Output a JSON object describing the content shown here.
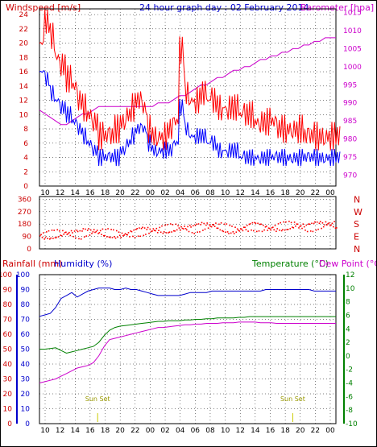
{
  "colors": {
    "wind": "#ff0000",
    "gust": "#ff0000",
    "avg": "#0000ff",
    "baro": "#cc00cc",
    "dir": "#ff0000",
    "temp": "#008000",
    "dew": "#cc00cc",
    "hum": "#0000cc",
    "rain": "#cc0000",
    "sun": "#cccc00",
    "grid": "#000000"
  },
  "chart_data": [
    {
      "type": "line",
      "title": "24 hour graph day : 02 February 2014",
      "ylabel_left": "Windspeed [m/s]",
      "ylabel_right": "Barometer [hpa]",
      "x_ticks": [
        "10",
        "12",
        "14",
        "16",
        "18",
        "20",
        "22",
        "00",
        "02",
        "04",
        "06",
        "08",
        "10",
        "12",
        "14",
        "16",
        "18",
        "20",
        "22",
        "00"
      ],
      "y_left_ticks": [
        0,
        2,
        4,
        6,
        8,
        10,
        12,
        14,
        16,
        18,
        20,
        22,
        24
      ],
      "y_left_ticks_labels": [
        "0",
        "2",
        "4",
        "6",
        "8",
        "10",
        "12",
        "14",
        "16",
        "18",
        "20",
        "22",
        "24"
      ],
      "y_right_ticks": [
        970,
        975,
        980,
        985,
        990,
        995,
        1000,
        1005,
        1010,
        1015
      ],
      "ylim_left": [
        0,
        24.8
      ],
      "ylim_right": [
        967,
        1016
      ],
      "series": [
        {
          "key": "gust",
          "axis": "left",
          "values": [
            20,
            23,
            21,
            18,
            17,
            15,
            14,
            12,
            11,
            10,
            9,
            7,
            7,
            7,
            8,
            9,
            10,
            11,
            12,
            11,
            8,
            7,
            7,
            7,
            8,
            9,
            19,
            13,
            12,
            12,
            13,
            12,
            12,
            11,
            11,
            11,
            11,
            10,
            10,
            10,
            9,
            9,
            9,
            9,
            8,
            8,
            8,
            8,
            8,
            7,
            7,
            7,
            7,
            7,
            7,
            7
          ]
        },
        {
          "key": "avg",
          "axis": "left",
          "values": [
            16,
            15,
            13,
            12,
            11,
            10,
            9,
            8,
            7,
            6,
            5,
            4,
            4,
            4,
            4,
            5,
            6,
            7,
            8,
            8,
            6,
            5,
            5,
            5,
            5,
            6,
            11,
            8,
            7,
            7,
            7,
            6,
            6,
            5,
            5,
            5,
            5,
            4,
            4,
            4,
            4,
            4,
            4,
            4,
            4,
            4,
            4,
            4,
            4,
            4,
            4,
            4,
            4,
            4,
            4,
            4
          ]
        },
        {
          "key": "baro",
          "axis": "right",
          "values": [
            988,
            987,
            986,
            985,
            984,
            984,
            985,
            986,
            987,
            987,
            988,
            989,
            989,
            989,
            989,
            989,
            989,
            989,
            989,
            989,
            989,
            989,
            990,
            990,
            990,
            991,
            992,
            992,
            993,
            994,
            995,
            995,
            996,
            997,
            997,
            998,
            999,
            999,
            1000,
            1000,
            1001,
            1002,
            1002,
            1003,
            1003,
            1004,
            1004,
            1005,
            1005,
            1006,
            1006,
            1007,
            1007,
            1008,
            1008,
            1008
          ]
        }
      ]
    },
    {
      "type": "scatter",
      "ylabel_right_letters": [
        "N",
        "W",
        "S",
        "E",
        "N"
      ],
      "y_ticks": [
        360,
        270,
        180,
        90,
        0
      ],
      "ylim": [
        0,
        380
      ],
      "series": [
        {
          "key": "dir",
          "values": [
            95,
            100,
            105,
            110,
            115,
            110,
            105,
            100,
            115,
            120,
            125,
            120,
            115,
            110,
            105,
            100,
            105,
            110,
            120,
            125,
            130,
            135,
            140,
            145,
            150,
            155,
            150,
            145,
            140,
            150,
            160,
            165,
            170,
            160,
            150,
            140,
            135,
            140,
            150,
            160,
            155,
            150,
            145,
            150,
            160,
            165,
            170,
            175,
            160,
            150,
            155,
            165,
            170,
            180,
            175,
            170
          ]
        }
      ]
    },
    {
      "type": "line",
      "ylabel_left_rain": "Rainfall (mm)",
      "ylabel_left_hum": "Humidity (%)",
      "ylabel_right_temp": "Temperature (°C)",
      "ylabel_right_dew": "Dew Point (°C)",
      "rain_ticks": [
        0,
        10,
        20,
        30,
        40,
        50,
        60,
        70,
        80,
        90,
        100
      ],
      "hum_ticks": [
        0,
        10,
        20,
        30,
        40,
        50,
        60,
        70,
        80,
        90,
        100
      ],
      "temp_ticks": [
        -10,
        -8,
        -6,
        -4,
        -2,
        0,
        2,
        4,
        6,
        8,
        10,
        12
      ],
      "ylim_hum": [
        0,
        100
      ],
      "ylim_temp": [
        -10,
        12
      ],
      "annotations": [
        "Sun Set",
        "Sun Set"
      ],
      "series": [
        {
          "key": "hum",
          "axis": "hum",
          "values": [
            72,
            73,
            74,
            78,
            84,
            86,
            88,
            85,
            87,
            89,
            90,
            91,
            91,
            91,
            90,
            90,
            91,
            90,
            90,
            89,
            88,
            87,
            86,
            86,
            86,
            86,
            86,
            87,
            88,
            88,
            88,
            88,
            89,
            89,
            89,
            89,
            89,
            89,
            89,
            89,
            89,
            89,
            90,
            90,
            90,
            90,
            90,
            90,
            90,
            90,
            90,
            89,
            89,
            89,
            89,
            89
          ]
        },
        {
          "key": "temp",
          "axis": "temp",
          "values": [
            1.0,
            1.0,
            1.1,
            1.2,
            0.8,
            0.4,
            0.6,
            0.8,
            1.0,
            1.2,
            1.4,
            2.0,
            3.0,
            3.8,
            4.2,
            4.4,
            4.5,
            4.6,
            4.7,
            4.8,
            4.9,
            5.0,
            5.1,
            5.1,
            5.2,
            5.2,
            5.2,
            5.3,
            5.3,
            5.4,
            5.4,
            5.5,
            5.5,
            5.6,
            5.6,
            5.6,
            5.6,
            5.7,
            5.7,
            5.8,
            5.8,
            5.8,
            5.8,
            5.8,
            5.8,
            5.8,
            5.8,
            5.8,
            5.8,
            5.8,
            5.8,
            5.8,
            5.8,
            5.8,
            5.8,
            5.8
          ]
        },
        {
          "key": "dew",
          "axis": "temp",
          "values": [
            -4.0,
            -3.8,
            -3.6,
            -3.4,
            -3.0,
            -2.6,
            -2.2,
            -1.8,
            -1.6,
            -1.4,
            -1.0,
            0.0,
            1.4,
            2.4,
            2.6,
            2.8,
            3.0,
            3.2,
            3.4,
            3.6,
            3.8,
            4.0,
            4.2,
            4.2,
            4.3,
            4.4,
            4.5,
            4.6,
            4.6,
            4.7,
            4.7,
            4.8,
            4.8,
            4.8,
            4.9,
            4.9,
            4.9,
            5.0,
            5.0,
            5.0,
            5.0,
            4.9,
            4.9,
            4.9,
            4.8,
            4.8,
            4.8,
            4.8,
            4.8,
            4.8,
            4.8,
            4.8,
            4.8,
            4.8,
            4.8,
            4.8
          ]
        }
      ]
    }
  ]
}
